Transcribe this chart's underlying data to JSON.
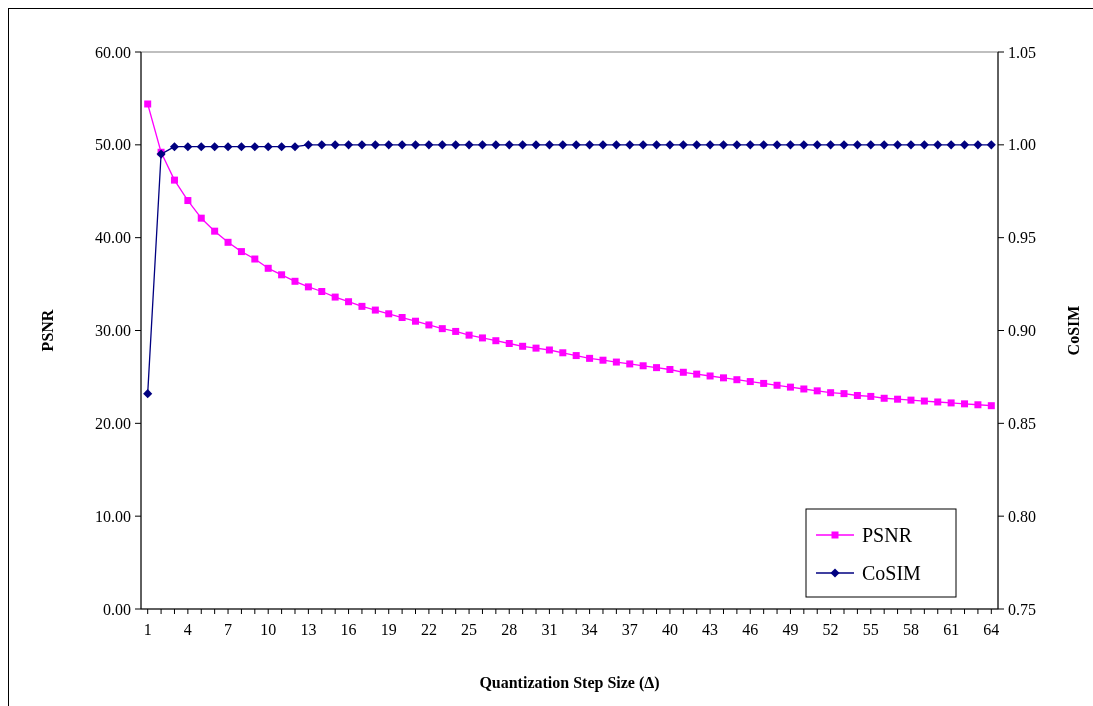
{
  "chart_data": {
    "type": "line",
    "xlabel": "Quantization Step Size (Δ)",
    "ylabel": "PSNR",
    "y2label": "CoSIM",
    "categories": [
      "1",
      null,
      null,
      "4",
      null,
      null,
      "7",
      null,
      null,
      "10",
      null,
      null,
      "13",
      null,
      null,
      "16",
      null,
      null,
      "19",
      null,
      null,
      "22",
      null,
      null,
      "25",
      null,
      null,
      "28",
      null,
      null,
      "31",
      null,
      null,
      "34",
      null,
      null,
      "37",
      null,
      null,
      "40",
      null,
      null,
      "43",
      null,
      null,
      "46",
      null,
      null,
      "49",
      null,
      null,
      "52",
      null,
      null,
      "55",
      null,
      null,
      "58",
      null,
      null,
      "61",
      null,
      null,
      "64"
    ],
    "series": [
      {
        "name": "PSNR",
        "color": "#ff00ff",
        "marker": "square",
        "values": [
          54.4,
          49.2,
          46.2,
          44.0,
          42.1,
          40.7,
          39.5,
          38.5,
          37.7,
          36.7,
          36.0,
          35.3,
          34.7,
          34.2,
          33.6,
          33.1,
          32.6,
          32.2,
          31.8,
          31.4,
          31.0,
          30.6,
          30.2,
          29.9,
          29.5,
          29.2,
          28.9,
          28.6,
          28.3,
          28.1,
          27.9,
          27.6,
          27.3,
          27.0,
          26.8,
          26.6,
          26.4,
          26.2,
          26.0,
          25.8,
          25.5,
          25.3,
          25.1,
          24.9,
          24.7,
          24.5,
          24.3,
          24.1,
          23.9,
          23.7,
          23.5,
          23.3,
          23.2,
          23.0,
          22.9,
          22.7,
          22.6,
          22.5,
          22.4,
          22.3,
          22.2,
          22.1,
          22.0,
          21.9
        ]
      },
      {
        "name": "CoSIM",
        "color": "#000080",
        "marker": "diamond",
        "axis": "y2",
        "values": [
          0.866,
          0.995,
          0.999,
          0.999,
          0.999,
          0.999,
          0.999,
          0.999,
          0.999,
          0.999,
          0.999,
          0.999,
          1.0,
          1.0,
          1.0,
          1.0,
          1.0,
          1.0,
          1.0,
          1.0,
          1.0,
          1.0,
          1.0,
          1.0,
          1.0,
          1.0,
          1.0,
          1.0,
          1.0,
          1.0,
          1.0,
          1.0,
          1.0,
          1.0,
          1.0,
          1.0,
          1.0,
          1.0,
          1.0,
          1.0,
          1.0,
          1.0,
          1.0,
          1.0,
          1.0,
          1.0,
          1.0,
          1.0,
          1.0,
          1.0,
          1.0,
          1.0,
          1.0,
          1.0,
          1.0,
          1.0,
          1.0,
          1.0,
          1.0,
          1.0,
          1.0,
          1.0,
          1.0,
          1.0
        ]
      }
    ],
    "ylim": [
      0,
      60
    ],
    "yticks": [
      {
        "value": 0,
        "label": "0.00"
      },
      {
        "value": 10,
        "label": "10.00"
      },
      {
        "value": 20,
        "label": "20.00"
      },
      {
        "value": 30,
        "label": "30.00"
      },
      {
        "value": 40,
        "label": "40.00"
      },
      {
        "value": 50,
        "label": "50.00"
      },
      {
        "value": 60,
        "label": "60.00"
      }
    ],
    "y2lim": [
      0.75,
      1.05
    ],
    "y2ticks": [
      {
        "value": 0.75,
        "label": "0.75"
      },
      {
        "value": 0.8,
        "label": "0.80"
      },
      {
        "value": 0.85,
        "label": "0.85"
      },
      {
        "value": 0.9,
        "label": "0.90"
      },
      {
        "value": 0.95,
        "label": "0.95"
      },
      {
        "value": 1.0,
        "label": "1.00"
      },
      {
        "value": 1.05,
        "label": "1.05"
      }
    ],
    "legend": "bottom right",
    "grid": false
  }
}
